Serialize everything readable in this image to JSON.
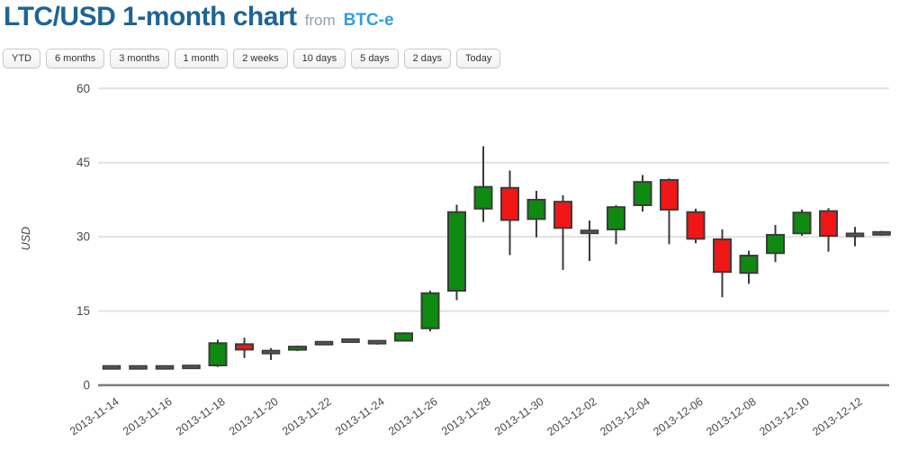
{
  "header": {
    "title": "LTC/USD 1-month chart",
    "from_label": "from",
    "source": "BTC-e"
  },
  "toolbar": {
    "buttons": [
      "YTD",
      "6 months",
      "3 months",
      "1 month",
      "2 weeks",
      "10 days",
      "5 days",
      "2 days",
      "Today"
    ]
  },
  "chart_data": {
    "type": "candlestick",
    "title": "LTC/USD 1-month chart",
    "ylabel": "USD",
    "ylim": [
      0,
      60
    ],
    "yticks": [
      0,
      15,
      30,
      45,
      60
    ],
    "grid": true,
    "xtick_dates": [
      "2013-11-14",
      "2013-11-16",
      "2013-11-18",
      "2013-11-20",
      "2013-11-22",
      "2013-11-24",
      "2013-11-26",
      "2013-11-28",
      "2013-11-30",
      "2013-12-02",
      "2013-12-04",
      "2013-12-06",
      "2013-12-08",
      "2013-12-10",
      "2013-12-12"
    ],
    "candles": [
      {
        "date": "2013-11-14",
        "open": 3.6,
        "high": 3.7,
        "low": 3.5,
        "close": 3.6
      },
      {
        "date": "2013-11-15",
        "open": 3.6,
        "high": 3.7,
        "low": 3.5,
        "close": 3.6
      },
      {
        "date": "2013-11-16",
        "open": 3.6,
        "high": 3.7,
        "low": 3.5,
        "close": 3.6
      },
      {
        "date": "2013-11-17",
        "open": 3.7,
        "high": 3.8,
        "low": 3.6,
        "close": 3.7
      },
      {
        "date": "2013-11-18",
        "open": 4.0,
        "high": 9.2,
        "low": 3.7,
        "close": 8.5
      },
      {
        "date": "2013-11-19",
        "open": 8.3,
        "high": 9.6,
        "low": 5.5,
        "close": 7.2
      },
      {
        "date": "2013-11-20",
        "open": 6.7,
        "high": 7.5,
        "low": 5.1,
        "close": 6.7
      },
      {
        "date": "2013-11-21",
        "open": 7.2,
        "high": 8.0,
        "low": 6.9,
        "close": 7.8
      },
      {
        "date": "2013-11-22",
        "open": 8.5,
        "high": 8.7,
        "low": 8.3,
        "close": 8.5
      },
      {
        "date": "2013-11-23",
        "open": 9.0,
        "high": 9.2,
        "low": 8.8,
        "close": 9.0
      },
      {
        "date": "2013-11-24",
        "open": 8.7,
        "high": 9.1,
        "low": 8.2,
        "close": 8.7
      },
      {
        "date": "2013-11-25",
        "open": 9.0,
        "high": 10.7,
        "low": 8.9,
        "close": 10.5
      },
      {
        "date": "2013-11-26",
        "open": 11.5,
        "high": 19.1,
        "low": 10.9,
        "close": 18.6
      },
      {
        "date": "2013-11-27",
        "open": 19.1,
        "high": 36.5,
        "low": 17.2,
        "close": 35.0
      },
      {
        "date": "2013-11-28",
        "open": 35.7,
        "high": 48.3,
        "low": 33.0,
        "close": 40.1
      },
      {
        "date": "2013-11-29",
        "open": 39.9,
        "high": 43.4,
        "low": 26.3,
        "close": 33.4
      },
      {
        "date": "2013-11-30",
        "open": 33.6,
        "high": 39.3,
        "low": 29.9,
        "close": 37.5
      },
      {
        "date": "2013-12-01",
        "open": 37.1,
        "high": 38.4,
        "low": 23.3,
        "close": 31.8
      },
      {
        "date": "2013-12-02",
        "open": 31.0,
        "high": 33.3,
        "low": 25.1,
        "close": 31.0
      },
      {
        "date": "2013-12-03",
        "open": 31.5,
        "high": 36.4,
        "low": 28.5,
        "close": 36.0
      },
      {
        "date": "2013-12-04",
        "open": 36.4,
        "high": 42.5,
        "low": 35.1,
        "close": 41.1
      },
      {
        "date": "2013-12-05",
        "open": 41.5,
        "high": 41.8,
        "low": 28.5,
        "close": 35.5
      },
      {
        "date": "2013-12-06",
        "open": 35.0,
        "high": 35.7,
        "low": 28.7,
        "close": 29.6
      },
      {
        "date": "2013-12-07",
        "open": 29.5,
        "high": 31.5,
        "low": 17.8,
        "close": 22.9
      },
      {
        "date": "2013-12-08",
        "open": 22.7,
        "high": 27.2,
        "low": 20.5,
        "close": 26.2
      },
      {
        "date": "2013-12-09",
        "open": 26.7,
        "high": 32.4,
        "low": 24.9,
        "close": 30.4
      },
      {
        "date": "2013-12-10",
        "open": 30.7,
        "high": 35.5,
        "low": 30.2,
        "close": 34.9
      },
      {
        "date": "2013-12-11",
        "open": 35.2,
        "high": 35.8,
        "low": 27.0,
        "close": 30.2
      },
      {
        "date": "2013-12-12",
        "open": 30.4,
        "high": 32.0,
        "low": 28.1,
        "close": 30.4
      },
      {
        "date": "2013-12-13",
        "open": 30.7,
        "high": 31.2,
        "low": 30.2,
        "close": 30.7
      }
    ],
    "colors": {
      "up": "#0e8a10",
      "down": "#f11616",
      "flat": "#555555",
      "border": "#3b3b3b",
      "grid": "#e2e2e2",
      "axis": "#7b7b7b",
      "tick_text": "#4a4a4a",
      "ylabel_text": "#444444"
    }
  }
}
